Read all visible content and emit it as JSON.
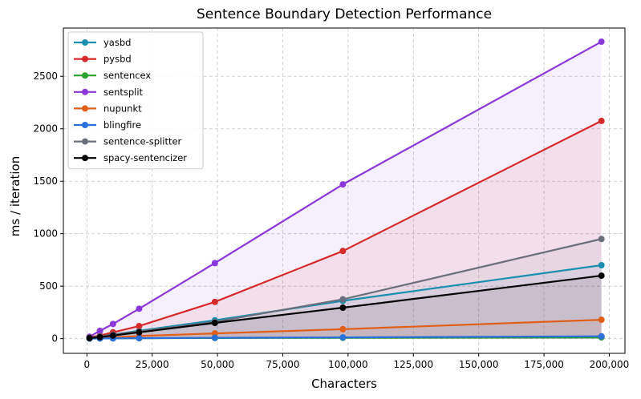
{
  "chart_data": {
    "type": "line",
    "title": "Sentence Boundary Detection Performance",
    "xlabel": "Characters",
    "ylabel": "ms / iteration",
    "xlim": [
      -9000,
      206000
    ],
    "ylim": [
      -140,
      2960
    ],
    "x_ticks": [
      0,
      25000,
      50000,
      75000,
      100000,
      125000,
      150000,
      175000,
      200000
    ],
    "x_tick_labels": [
      "0",
      "25,000",
      "50,000",
      "75,000",
      "100,000",
      "125,000",
      "150,000",
      "175,000",
      "200,000"
    ],
    "y_ticks": [
      0,
      500,
      1000,
      1500,
      2000,
      2500
    ],
    "y_tick_labels": [
      "0",
      "500",
      "1000",
      "1500",
      "2000",
      "2500"
    ],
    "grid": true,
    "legend_position": "top-left",
    "x": [
      1000,
      5000,
      10000,
      20000,
      49000,
      98000,
      197000
    ],
    "series": [
      {
        "name": "yasbd",
        "color": "#1a8fae",
        "values": [
          6,
          20,
          40,
          75,
          175,
          360,
          700
        ]
      },
      {
        "name": "pysbd",
        "color": "#d62a2a",
        "values": [
          12,
          30,
          60,
          120,
          350,
          835,
          2075
        ]
      },
      {
        "name": "sentencex",
        "color": "#2ca02c",
        "values": [
          1,
          2,
          3,
          4,
          6,
          8,
          12
        ]
      },
      {
        "name": "sentsplit",
        "color": "#8b37d9",
        "values": [
          18,
          75,
          140,
          285,
          720,
          1470,
          2830
        ]
      },
      {
        "name": "nupunkt",
        "color": "#e0601a",
        "values": [
          3,
          6,
          12,
          25,
          50,
          90,
          180
        ]
      },
      {
        "name": "blingfire",
        "color": "#2a6fdb",
        "values": [
          1,
          2,
          3,
          4,
          8,
          12,
          22
        ]
      },
      {
        "name": "sentence-splitter",
        "color": "#6b6f7c",
        "values": [
          8,
          22,
          38,
          68,
          160,
          375,
          950
        ]
      },
      {
        "name": "spacy-sentencizer",
        "color": "#000000",
        "values": [
          5,
          15,
          30,
          60,
          150,
          295,
          600
        ]
      }
    ]
  }
}
